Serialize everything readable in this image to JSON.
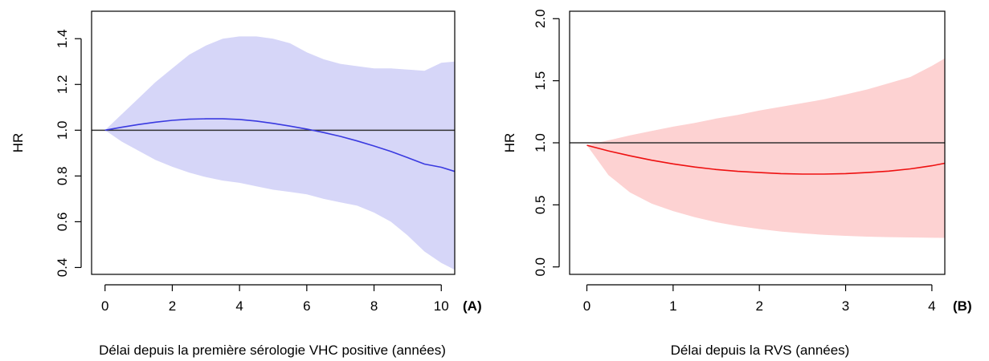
{
  "chart_data": [
    {
      "panel_tag": "(A)",
      "type": "line",
      "xlabel": "Délai depuis la première sérologie VHC positive (années)",
      "ylabel": "HR",
      "xlim": [
        -0.4,
        10.4
      ],
      "ylim": [
        0.37,
        1.52
      ],
      "x_ticks": [
        0,
        2,
        4,
        6,
        8,
        10
      ],
      "y_ticks": [
        0.4,
        0.6,
        0.8,
        1.0,
        1.2,
        1.4
      ],
      "y_tick_labels": [
        "0.4",
        "0.6",
        "0.8",
        "1.0",
        "1.2",
        "1.4"
      ],
      "reference_line": 1.0,
      "band_color": "#d6d6f8",
      "line_color": "#3a3ae0",
      "x": [
        0,
        0.5,
        1,
        1.5,
        2,
        2.5,
        3,
        3.5,
        4,
        4.5,
        5,
        5.5,
        6,
        6.5,
        7,
        7.5,
        8,
        8.5,
        9,
        9.5,
        10,
        10.4
      ],
      "estimate": [
        1.0,
        1.013,
        1.025,
        1.035,
        1.043,
        1.048,
        1.05,
        1.05,
        1.047,
        1.04,
        1.03,
        1.018,
        1.005,
        0.99,
        0.973,
        0.953,
        0.931,
        0.907,
        0.88,
        0.852,
        0.838,
        0.82
      ],
      "upper": [
        1.0,
        1.07,
        1.14,
        1.21,
        1.27,
        1.33,
        1.37,
        1.4,
        1.41,
        1.41,
        1.4,
        1.38,
        1.34,
        1.31,
        1.29,
        1.28,
        1.27,
        1.27,
        1.265,
        1.26,
        1.295,
        1.3
      ],
      "lower": [
        1.0,
        0.95,
        0.91,
        0.87,
        0.84,
        0.815,
        0.795,
        0.78,
        0.77,
        0.755,
        0.74,
        0.73,
        0.72,
        0.7,
        0.685,
        0.67,
        0.64,
        0.6,
        0.54,
        0.47,
        0.42,
        0.39
      ]
    },
    {
      "panel_tag": "(B)",
      "type": "line",
      "xlabel": "Délai depuis la RVS (années)",
      "ylabel": "HR",
      "xlim": [
        -0.2,
        4.15
      ],
      "ylim": [
        -0.06,
        2.06
      ],
      "x_ticks": [
        0,
        1,
        2,
        3,
        4
      ],
      "y_ticks": [
        0.0,
        0.5,
        1.0,
        1.5,
        2.0
      ],
      "y_tick_labels": [
        "0.0",
        "0.5",
        "1.0",
        "1.5",
        "2.0"
      ],
      "reference_line": 1.0,
      "band_color": "#fdd2d2",
      "line_color": "#ee1111",
      "x": [
        0,
        0.25,
        0.5,
        0.75,
        1,
        1.25,
        1.5,
        1.75,
        2,
        2.25,
        2.5,
        2.75,
        3,
        3.25,
        3.5,
        3.75,
        4,
        4.15
      ],
      "estimate": [
        0.98,
        0.935,
        0.895,
        0.86,
        0.83,
        0.805,
        0.785,
        0.77,
        0.76,
        0.752,
        0.748,
        0.748,
        0.752,
        0.76,
        0.772,
        0.79,
        0.815,
        0.835
      ],
      "upper": [
        0.98,
        1.02,
        1.06,
        1.095,
        1.13,
        1.16,
        1.195,
        1.225,
        1.26,
        1.29,
        1.32,
        1.35,
        1.39,
        1.43,
        1.48,
        1.53,
        1.62,
        1.68
      ],
      "lower": [
        0.98,
        0.74,
        0.6,
        0.51,
        0.45,
        0.4,
        0.36,
        0.33,
        0.305,
        0.285,
        0.27,
        0.258,
        0.25,
        0.244,
        0.24,
        0.237,
        0.235,
        0.234
      ]
    }
  ]
}
